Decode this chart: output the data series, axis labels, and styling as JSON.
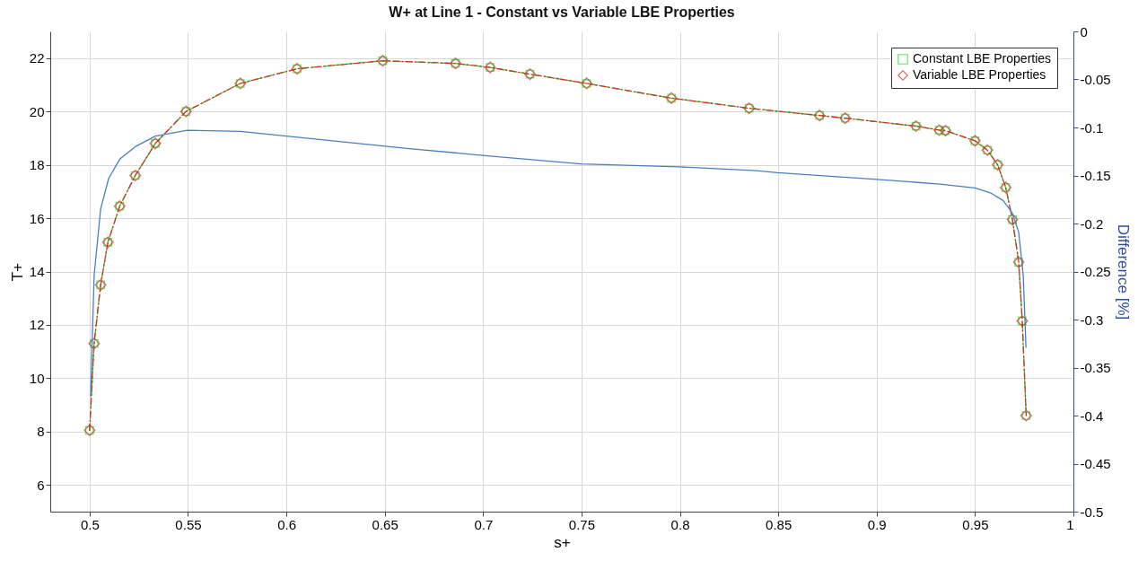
{
  "chart_data": {
    "type": "line",
    "title": "W+ at Line 1 - Constant vs Variable LBE Properties",
    "xlabel": "s+",
    "ylabel": "T+",
    "y2label": "Difference [%]",
    "xlim": [
      0.48,
      1
    ],
    "xticks": [
      0.5,
      0.55,
      0.6,
      0.65,
      0.7,
      0.75,
      0.8,
      0.85,
      0.9,
      0.95,
      1
    ],
    "ylim": [
      5,
      23
    ],
    "yticks": [
      6,
      8,
      10,
      12,
      14,
      16,
      18,
      20,
      22
    ],
    "y2lim": [
      -0.5,
      0
    ],
    "y2ticks": [
      -0.5,
      -0.45,
      -0.4,
      -0.35,
      -0.3,
      -0.25,
      -0.2,
      -0.15,
      -0.1,
      -0.05,
      0
    ],
    "grid": true,
    "legend": "top right",
    "x": [
      0.5,
      0.5023,
      0.5056,
      0.5093,
      0.5153,
      0.5232,
      0.5334,
      0.549,
      0.5766,
      0.6054,
      0.649,
      0.686,
      0.7036,
      0.7238,
      0.7526,
      0.7957,
      0.8352,
      0.871,
      0.884,
      0.92,
      0.9318,
      0.935,
      0.95,
      0.9563,
      0.9615,
      0.9656,
      0.969,
      0.9722,
      0.974,
      0.976
    ],
    "series": [
      {
        "name": "Constant LBE Properties",
        "color": "#22dd22",
        "marker": "square",
        "line_style": "dashed",
        "values": [
          8.05,
          11.3,
          13.5,
          15.1,
          16.45,
          17.6,
          18.8,
          20.0,
          21.05,
          21.6,
          21.9,
          21.8,
          21.65,
          21.4,
          21.05,
          20.5,
          20.12,
          19.85,
          19.75,
          19.45,
          19.3,
          19.28,
          18.9,
          18.55,
          18.0,
          17.15,
          15.95,
          14.35,
          12.15,
          8.6
        ]
      },
      {
        "name": "Variable LBE Properties",
        "color": "#d03030",
        "marker": "diamond",
        "line_style": "dotted",
        "values": [
          8.05,
          11.3,
          13.5,
          15.1,
          16.45,
          17.6,
          18.8,
          20.0,
          21.05,
          21.6,
          21.9,
          21.8,
          21.65,
          21.4,
          21.05,
          20.5,
          20.12,
          19.85,
          19.75,
          19.45,
          19.3,
          19.28,
          18.9,
          18.55,
          18.0,
          17.15,
          15.95,
          14.35,
          12.15,
          8.6
        ]
      },
      {
        "color": "#4a7fbf",
        "axis": "y2",
        "marker": "none",
        "line_style": "solid",
        "x": [
          0.5005,
          0.5023,
          0.5056,
          0.5097,
          0.5153,
          0.5232,
          0.5334,
          0.5497,
          0.5766,
          0.6625,
          0.6996,
          0.7498,
          0.7994,
          0.8389,
          0.8496,
          0.9002,
          0.9322,
          0.9499,
          0.9578,
          0.9643,
          0.9689,
          0.9722,
          0.9745,
          0.9759
        ],
        "values": [
          -0.38,
          -0.254,
          -0.185,
          -0.153,
          -0.133,
          -0.12,
          -0.109,
          -0.103,
          -0.104,
          -0.122,
          -0.129,
          -0.138,
          -0.141,
          -0.145,
          -0.147,
          -0.154,
          -0.159,
          -0.163,
          -0.168,
          -0.176,
          -0.189,
          -0.209,
          -0.254,
          -0.329
        ]
      }
    ]
  }
}
